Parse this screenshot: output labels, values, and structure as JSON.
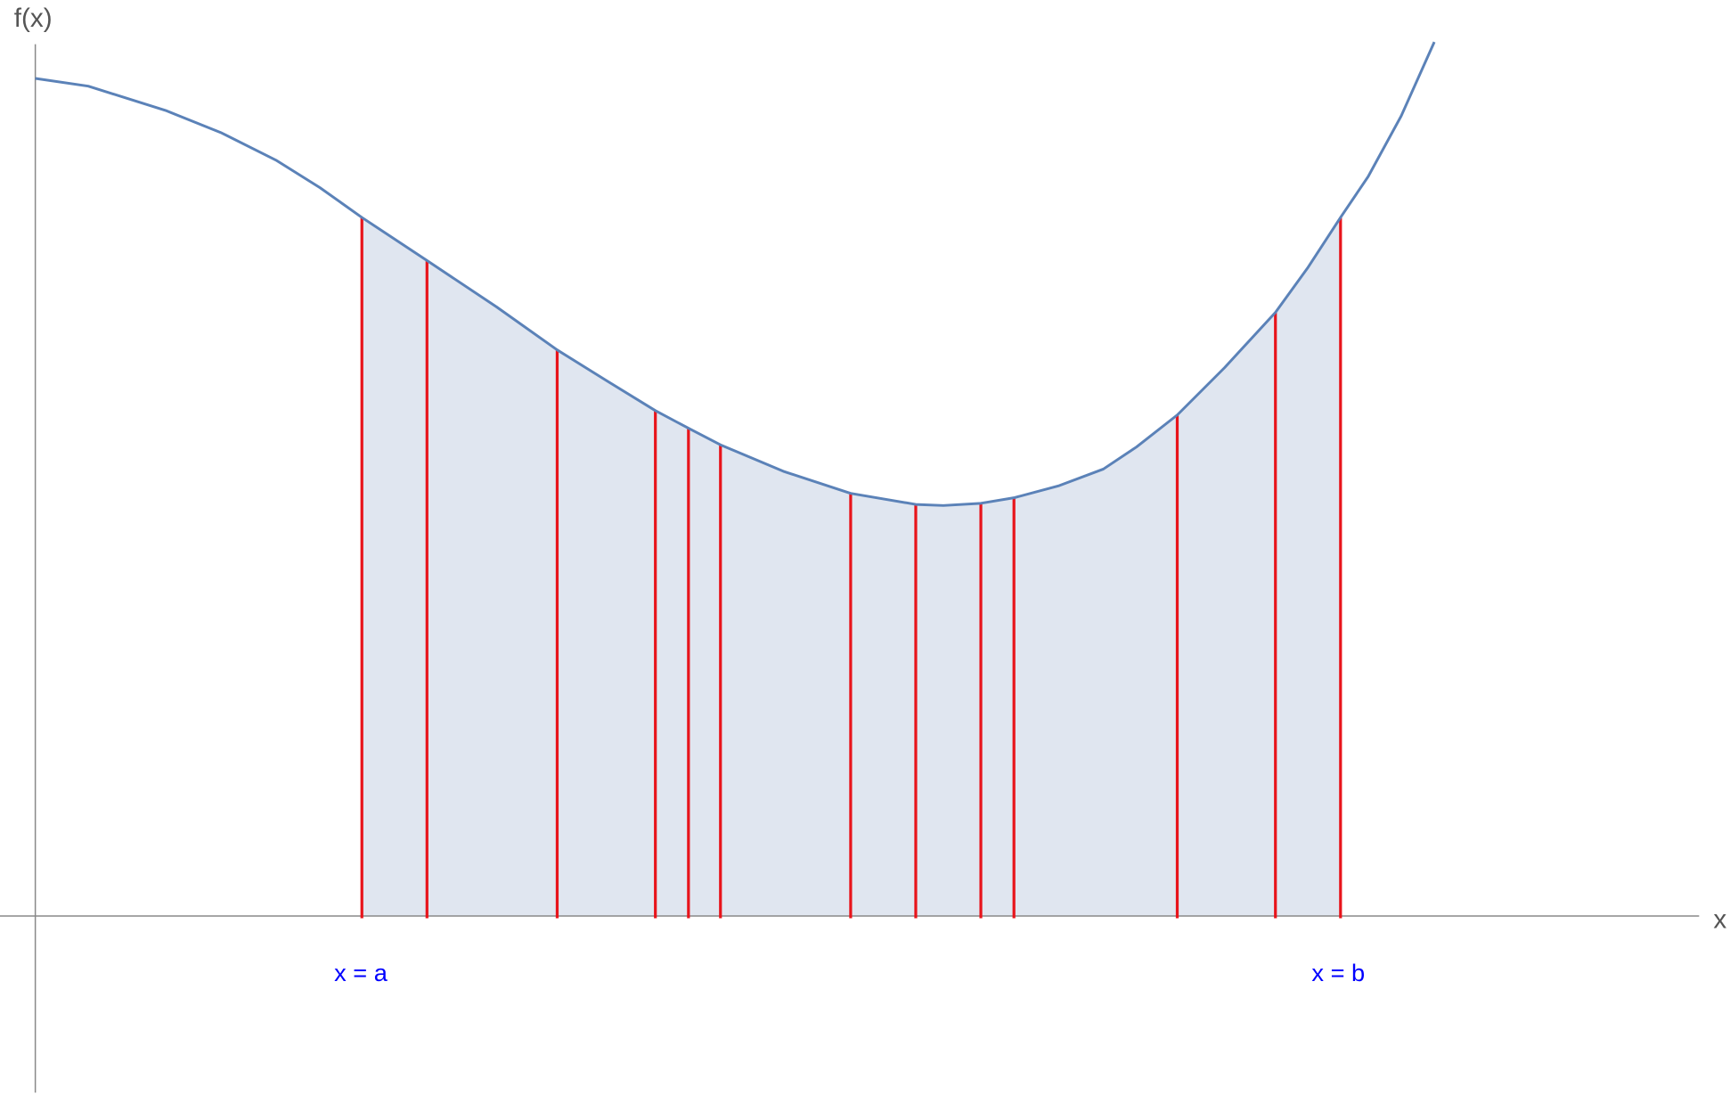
{
  "axes": {
    "y_label": "f(x)",
    "x_label": "x"
  },
  "labels": {
    "a": "x = a",
    "b": "x = b"
  }
}
